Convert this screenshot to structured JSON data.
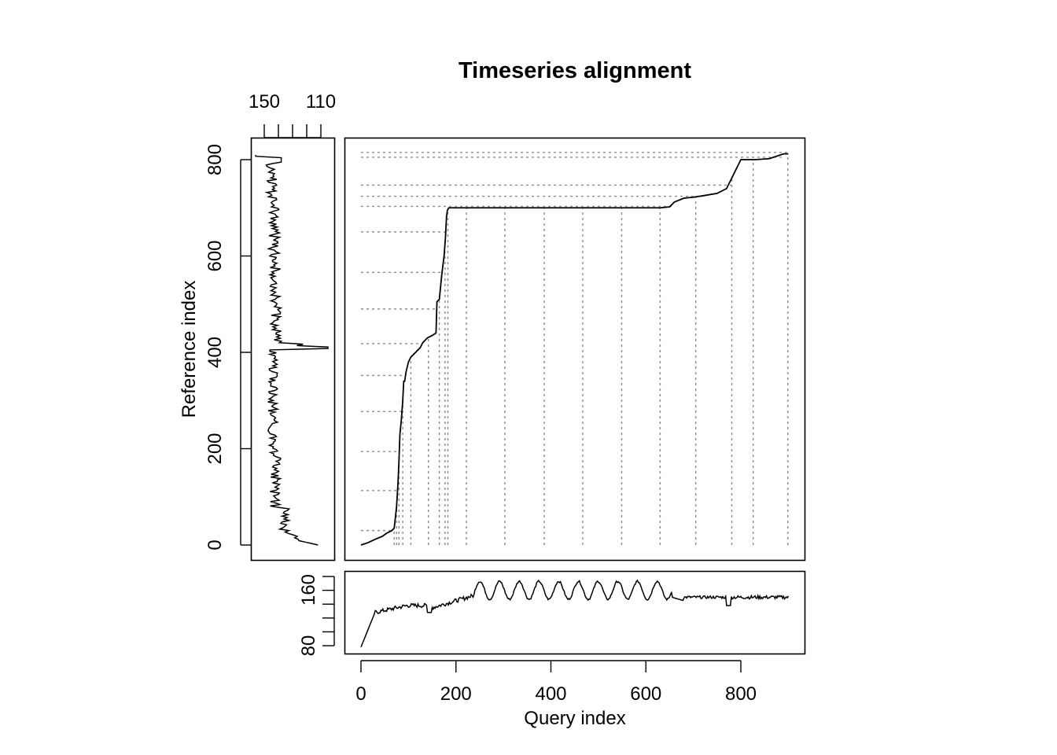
{
  "chart_data": [
    {
      "type": "line",
      "panel": "alignment",
      "title": "Timeseries alignment",
      "xlabel": "Query index",
      "ylabel": "Reference index",
      "xlim": [
        0,
        900
      ],
      "ylim": [
        0,
        815
      ],
      "x_ticks": [
        0,
        200,
        400,
        600,
        800
      ],
      "y_ticks": [
        0,
        200,
        400,
        600,
        800
      ],
      "grid": false,
      "series": [
        {
          "name": "warping path",
          "x": [
            0,
            15,
            30,
            45,
            55,
            65,
            70,
            75,
            78,
            80,
            82,
            85,
            88,
            90,
            92,
            95,
            100,
            105,
            110,
            115,
            120,
            125,
            130,
            140,
            150,
            158,
            160,
            165,
            170,
            175,
            178,
            180,
            182,
            185,
            190,
            200,
            300,
            400,
            500,
            580,
            630,
            650,
            660,
            680,
            700,
            720,
            750,
            770,
            780,
            790,
            800,
            810,
            830,
            860,
            890,
            900
          ],
          "y": [
            0,
            5,
            12,
            18,
            25,
            30,
            35,
            80,
            130,
            175,
            230,
            260,
            300,
            340,
            340,
            360,
            380,
            390,
            395,
            400,
            405,
            410,
            420,
            430,
            435,
            440,
            505,
            510,
            560,
            600,
            640,
            680,
            695,
            700,
            700,
            700,
            700,
            700,
            700,
            700,
            700,
            702,
            712,
            720,
            722,
            725,
            730,
            740,
            760,
            780,
            800,
            800,
            800,
            802,
            812,
            812
          ]
        }
      ],
      "dashed_guides": {
        "vertical_query_idx": [
          70,
          75,
          80,
          88,
          105,
          142,
          165,
          177,
          183,
          222,
          303,
          386,
          467,
          549,
          630,
          705,
          781,
          826,
          899
        ],
        "horizontal_reference_idx": [
          30,
          113,
          194,
          277,
          352,
          418,
          490,
          566,
          650,
          703,
          724,
          747,
          805,
          815
        ]
      }
    },
    {
      "type": "line",
      "panel": "reference (left, rotated)",
      "x_ticks": [
        150,
        140,
        130,
        120,
        110
      ],
      "x_tick_labels_shown": [
        "150",
        "110"
      ],
      "x_axis_position": "top",
      "xlim_reversed": [
        157,
        105
      ],
      "y_shared_with": "Reference index",
      "description": "Reference series plotted vertically against Reference index 0-815, mostly fluctuating between 135-150, sharp spike to ~104 near index 410, starts ~110 at index 0 and ~155 at index 812"
    },
    {
      "type": "line",
      "panel": "query (bottom)",
      "y_ticks": [
        80,
        100,
        120,
        140,
        160,
        180
      ],
      "y_tick_labels_shown": [
        "80",
        "160"
      ],
      "ylim": [
        78,
        182
      ],
      "x_shared_with": "Query index",
      "description": "Query series: rises from ~78 at 0 to ~128 by 30, ~140 around 100-200, oscillating 145-175 between 240 and 650, then ~150 flat 680-900 with dip ~135 near 775"
    }
  ],
  "labels": {
    "title": "Timeseries alignment",
    "xlabel": "Query index",
    "ylabel": "Reference index",
    "main_x_ticks": [
      "0",
      "200",
      "400",
      "600",
      "800"
    ],
    "main_y_ticks": [
      "0",
      "200",
      "400",
      "600",
      "800"
    ],
    "left_top_ticks": [
      "150",
      "110"
    ],
    "bottom_y_ticks": [
      "80",
      "160"
    ]
  }
}
